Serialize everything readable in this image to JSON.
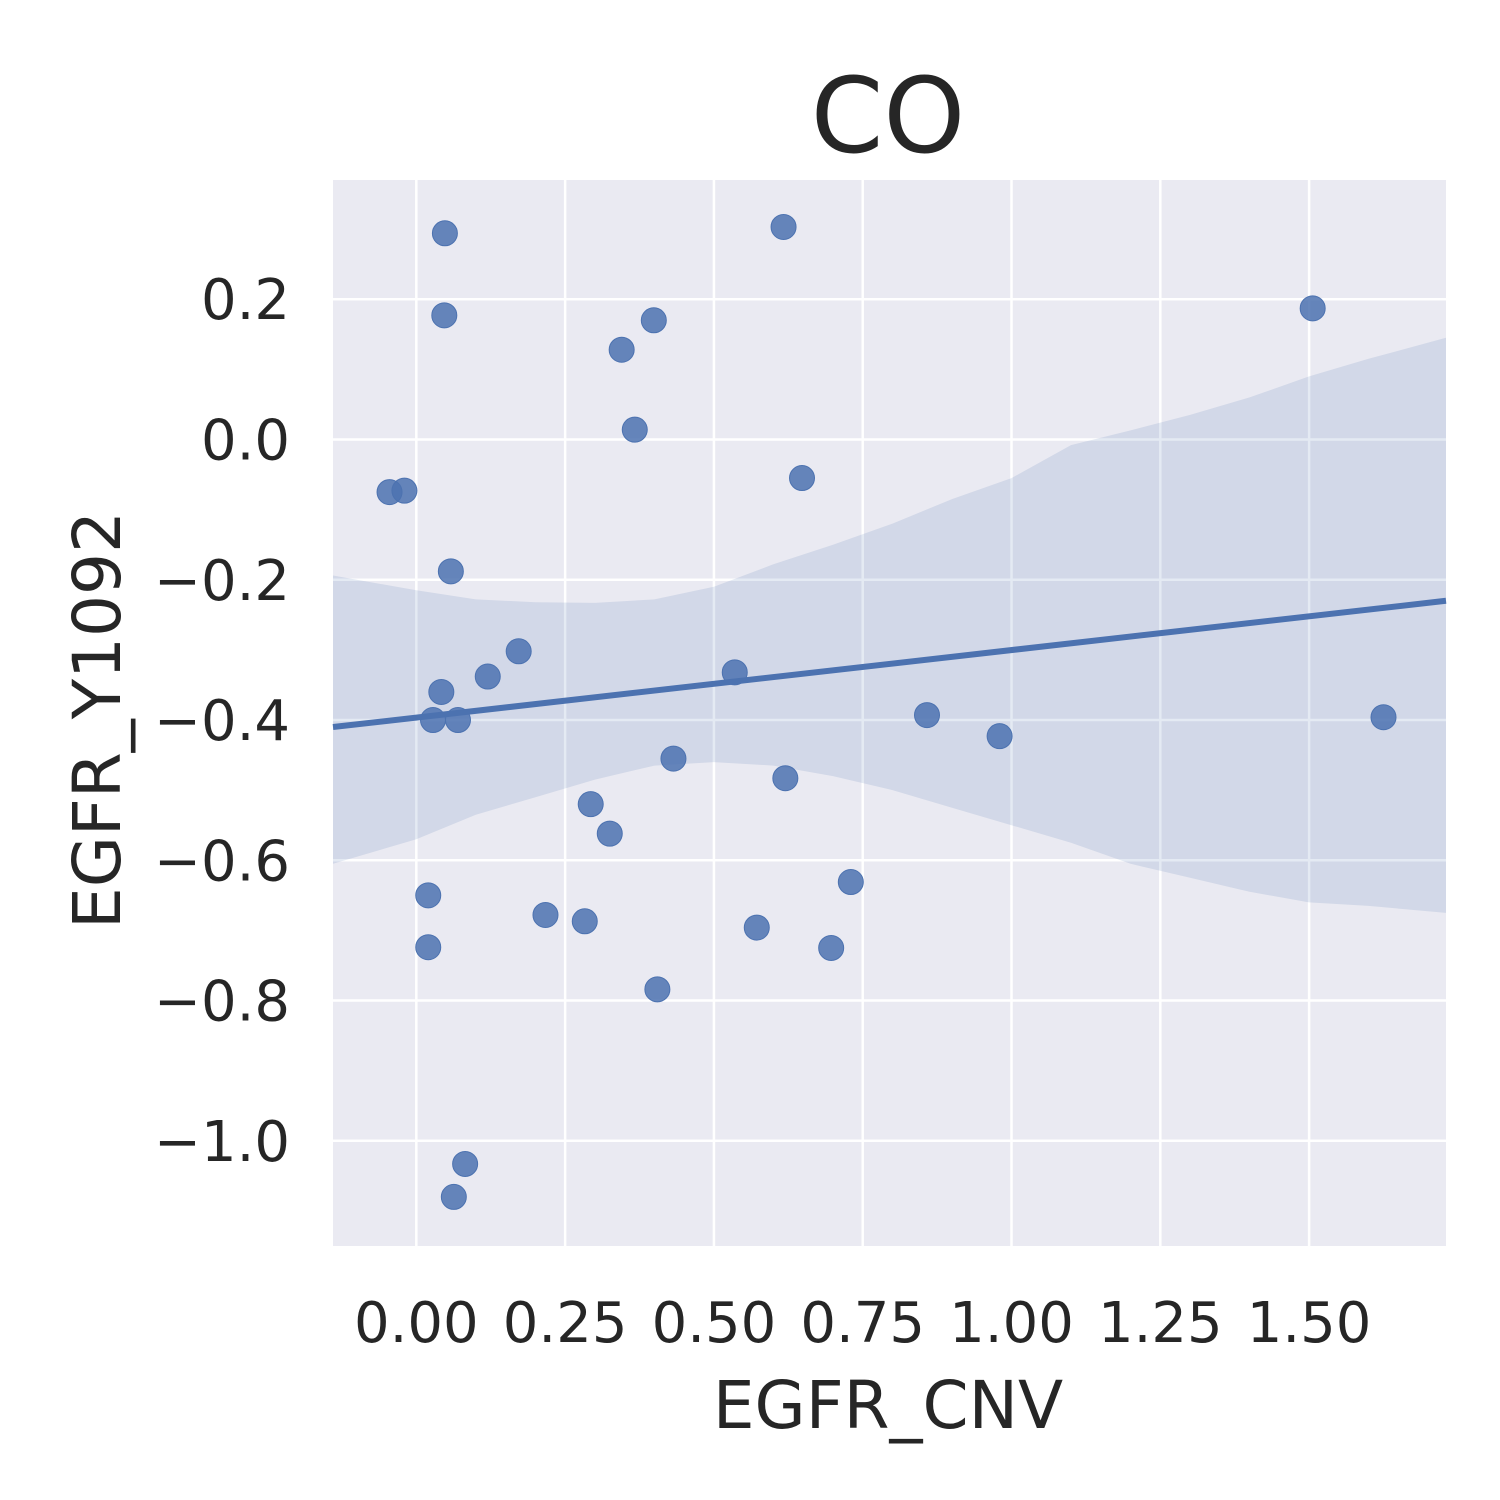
{
  "colors": {
    "background": "#eaeaf2",
    "grid": "#ffffff",
    "series": "#4c72b0",
    "ci_band": "#4c72b0",
    "text": "#262626"
  },
  "chart_data": {
    "type": "scatter",
    "title": "CO",
    "xlabel": "EGFR_CNV",
    "ylabel": "EGFR_Y1092",
    "xlim": [
      -0.14,
      1.73
    ],
    "ylim": [
      -1.15,
      0.37
    ],
    "x_ticks": [
      0.0,
      0.25,
      0.5,
      0.75,
      1.0,
      1.25,
      1.5
    ],
    "x_tick_labels": [
      "0.00",
      "0.25",
      "0.50",
      "0.75",
      "1.00",
      "1.25",
      "1.50"
    ],
    "y_ticks": [
      -1.0,
      -0.8,
      -0.6,
      -0.4,
      -0.2,
      0.0,
      0.2
    ],
    "y_tick_labels": [
      "−1.0",
      "−0.8",
      "−0.6",
      "−0.4",
      "−0.2",
      "0.0",
      "0.2"
    ],
    "grid": true,
    "points": [
      {
        "x": -0.045,
        "y": -0.075
      },
      {
        "x": -0.02,
        "y": -0.073
      },
      {
        "x": 0.048,
        "y": 0.294
      },
      {
        "x": 0.047,
        "y": 0.177
      },
      {
        "x": 0.058,
        "y": -0.188
      },
      {
        "x": 0.042,
        "y": -0.36
      },
      {
        "x": 0.028,
        "y": -0.4
      },
      {
        "x": 0.07,
        "y": -0.4
      },
      {
        "x": 0.12,
        "y": -0.338
      },
      {
        "x": 0.172,
        "y": -0.302
      },
      {
        "x": 0.02,
        "y": -0.65
      },
      {
        "x": 0.02,
        "y": -0.724
      },
      {
        "x": 0.082,
        "y": -1.033
      },
      {
        "x": 0.063,
        "y": -1.08
      },
      {
        "x": 0.217,
        "y": -0.678
      },
      {
        "x": 0.283,
        "y": -0.687
      },
      {
        "x": 0.293,
        "y": -0.52
      },
      {
        "x": 0.325,
        "y": -0.562
      },
      {
        "x": 0.345,
        "y": 0.128
      },
      {
        "x": 0.367,
        "y": 0.014
      },
      {
        "x": 0.399,
        "y": 0.17
      },
      {
        "x": 0.405,
        "y": -0.784
      },
      {
        "x": 0.432,
        "y": -0.455
      },
      {
        "x": 0.535,
        "y": -0.332
      },
      {
        "x": 0.572,
        "y": -0.696
      },
      {
        "x": 0.617,
        "y": 0.303
      },
      {
        "x": 0.62,
        "y": -0.483
      },
      {
        "x": 0.648,
        "y": -0.055
      },
      {
        "x": 0.697,
        "y": -0.725
      },
      {
        "x": 0.73,
        "y": -0.631
      },
      {
        "x": 0.858,
        "y": -0.393
      },
      {
        "x": 0.98,
        "y": -0.423
      },
      {
        "x": 1.506,
        "y": 0.187
      },
      {
        "x": 1.625,
        "y": -0.396
      }
    ],
    "regression": {
      "x": [
        -0.14,
        1.73
      ],
      "y": [
        -0.41,
        -0.23
      ]
    },
    "ci_band": {
      "x": [
        -0.14,
        0.0,
        0.1,
        0.2,
        0.3,
        0.4,
        0.5,
        0.6,
        0.7,
        0.8,
        0.9,
        1.0,
        1.1,
        1.2,
        1.3,
        1.4,
        1.5,
        1.6,
        1.73
      ],
      "upper": [
        -0.194,
        -0.215,
        -0.228,
        -0.232,
        -0.233,
        -0.228,
        -0.21,
        -0.178,
        -0.15,
        -0.12,
        -0.085,
        -0.055,
        -0.008,
        0.013,
        0.035,
        0.06,
        0.09,
        0.115,
        0.145
      ],
      "lower": [
        -0.605,
        -0.57,
        -0.535,
        -0.51,
        -0.485,
        -0.465,
        -0.46,
        -0.465,
        -0.48,
        -0.5,
        -0.525,
        -0.55,
        -0.575,
        -0.605,
        -0.625,
        -0.645,
        -0.66,
        -0.665,
        -0.675
      ]
    }
  }
}
